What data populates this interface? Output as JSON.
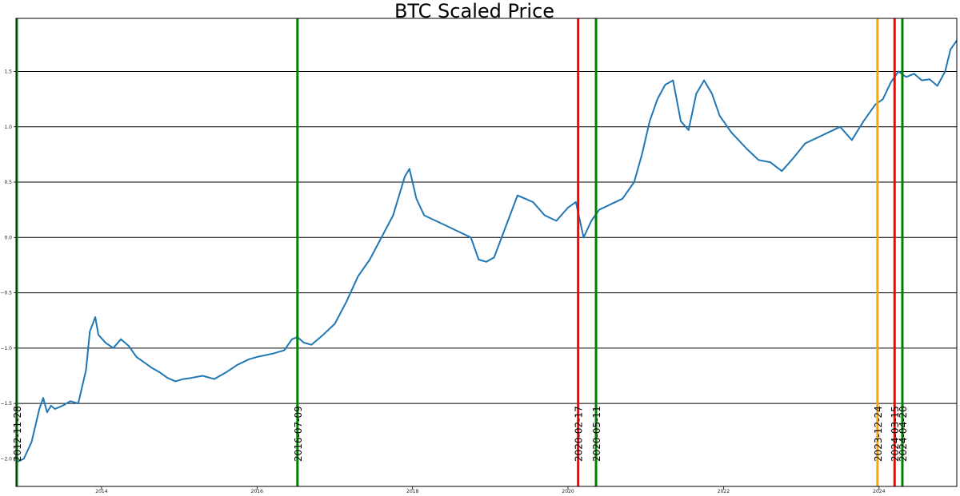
{
  "chart_data": {
    "type": "line",
    "title": "BTC Scaled Price",
    "xlabel": "",
    "ylabel": "",
    "xlim": [
      2012.9,
      2025.0
    ],
    "ylim": [
      -2.25,
      1.98
    ],
    "x_ticks": [
      {
        "value": 2014,
        "label": "2014"
      },
      {
        "value": 2016,
        "label": "2016"
      },
      {
        "value": 2018,
        "label": "2018"
      },
      {
        "value": 2020,
        "label": "2020"
      },
      {
        "value": 2022,
        "label": "2022"
      },
      {
        "value": 2024,
        "label": "2024"
      }
    ],
    "y_ticks": [
      {
        "value": 1.5,
        "label": "1.5"
      },
      {
        "value": 1.0,
        "label": "1.0"
      },
      {
        "value": 0.5,
        "label": "0.5"
      },
      {
        "value": 0.0,
        "label": "0.0"
      },
      {
        "value": -0.5,
        "label": "−0.5"
      },
      {
        "value": -1.0,
        "label": "−1.0"
      },
      {
        "value": -1.5,
        "label": "−1.5"
      },
      {
        "value": -2.0,
        "label": "−2.0"
      }
    ],
    "horizontal_grid": [
      1.5,
      1.0,
      0.5,
      0.0,
      -0.5,
      -1.0,
      -1.5
    ],
    "series": [
      {
        "color": "#1f77b4",
        "x": [
          2012.91,
          2013.0,
          2013.1,
          2013.2,
          2013.25,
          2013.3,
          2013.35,
          2013.4,
          2013.5,
          2013.6,
          2013.7,
          2013.8,
          2013.85,
          2013.92,
          2013.96,
          2014.05,
          2014.15,
          2014.25,
          2014.35,
          2014.45,
          2014.55,
          2014.65,
          2014.75,
          2014.85,
          2014.95,
          2015.05,
          2015.15,
          2015.3,
          2015.45,
          2015.6,
          2015.75,
          2015.9,
          2016.0,
          2016.2,
          2016.35,
          2016.45,
          2016.52,
          2016.6,
          2016.7,
          2016.85,
          2017.0,
          2017.15,
          2017.3,
          2017.45,
          2017.6,
          2017.75,
          2017.9,
          2017.96,
          2018.05,
          2018.15,
          2018.3,
          2018.45,
          2018.6,
          2018.75,
          2018.85,
          2018.95,
          2019.05,
          2019.2,
          2019.35,
          2019.45,
          2019.55,
          2019.7,
          2019.85,
          2020.0,
          2020.1,
          2020.2,
          2020.3,
          2020.4,
          2020.55,
          2020.7,
          2020.85,
          2020.95,
          2021.05,
          2021.15,
          2021.25,
          2021.35,
          2021.45,
          2021.55,
          2021.65,
          2021.75,
          2021.85,
          2021.95,
          2022.1,
          2022.3,
          2022.45,
          2022.6,
          2022.75,
          2022.9,
          2023.05,
          2023.2,
          2023.35,
          2023.5,
          2023.65,
          2023.8,
          2023.95,
          2024.05,
          2024.15,
          2024.25,
          2024.35,
          2024.45,
          2024.55,
          2024.65,
          2024.75,
          2024.85,
          2024.92,
          2025.0
        ],
        "y": [
          -2.03,
          -2.0,
          -1.85,
          -1.55,
          -1.45,
          -1.58,
          -1.52,
          -1.55,
          -1.52,
          -1.48,
          -1.5,
          -1.2,
          -0.85,
          -0.72,
          -0.88,
          -0.95,
          -1.0,
          -0.92,
          -0.98,
          -1.08,
          -1.13,
          -1.18,
          -1.22,
          -1.27,
          -1.3,
          -1.28,
          -1.27,
          -1.25,
          -1.28,
          -1.22,
          -1.15,
          -1.1,
          -1.08,
          -1.05,
          -1.02,
          -0.92,
          -0.9,
          -0.95,
          -0.97,
          -0.88,
          -0.78,
          -0.58,
          -0.35,
          -0.2,
          0.0,
          0.2,
          0.55,
          0.62,
          0.35,
          0.2,
          0.15,
          0.1,
          0.05,
          0.0,
          -0.2,
          -0.22,
          -0.18,
          0.1,
          0.38,
          0.35,
          0.32,
          0.2,
          0.15,
          0.27,
          0.32,
          0.0,
          0.15,
          0.25,
          0.3,
          0.35,
          0.5,
          0.75,
          1.05,
          1.25,
          1.38,
          1.42,
          1.05,
          0.97,
          1.3,
          1.42,
          1.3,
          1.1,
          0.95,
          0.8,
          0.7,
          0.68,
          0.6,
          0.72,
          0.85,
          0.9,
          0.95,
          1.0,
          0.88,
          1.05,
          1.2,
          1.25,
          1.4,
          1.5,
          1.45,
          1.48,
          1.42,
          1.43,
          1.37,
          1.5,
          1.7,
          1.78
        ]
      }
    ],
    "vertical_markers": [
      {
        "date": "2012-11-28",
        "x": 2012.91,
        "color": "#008000"
      },
      {
        "date": "2016-07-09",
        "x": 2016.52,
        "color": "#008000"
      },
      {
        "date": "2020-02-17",
        "x": 2020.13,
        "color": "#ff0000"
      },
      {
        "date": "2020-05-11",
        "x": 2020.36,
        "color": "#008000"
      },
      {
        "date": "2023-12-24",
        "x": 2023.98,
        "color": "#ffa500"
      },
      {
        "date": "2024-03-15",
        "x": 2024.2,
        "color": "#ff0000"
      },
      {
        "date": "2024-04-20",
        "x": 2024.3,
        "color": "#008000"
      }
    ],
    "grid": "horizontal lines only",
    "legend": "none"
  }
}
